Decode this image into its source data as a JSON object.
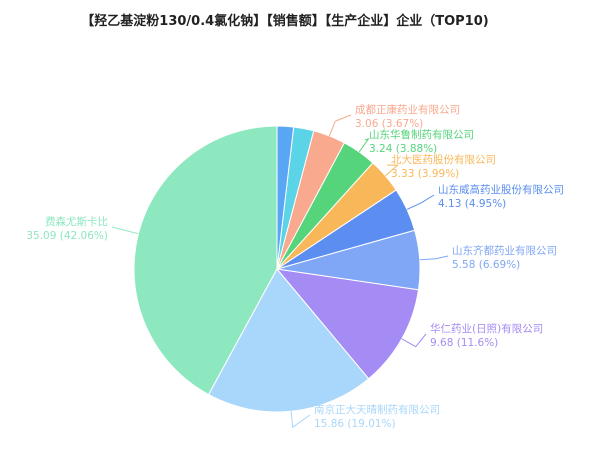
{
  "chart_data": {
    "type": "pie",
    "title": "【羟乙基淀粉130/0.4氯化钠】【销售额】【生产企业】企业（TOP10)",
    "slices": [
      {
        "label": "费森尤斯卡比",
        "value": 35.09,
        "percent": "42.06%",
        "color": "#8ee8bf"
      },
      {
        "label": "南京正大天晴制药有限公司",
        "value": 15.86,
        "percent": "19.01%",
        "color": "#a9d7fb"
      },
      {
        "label": "华仁药业(日照)有限公司",
        "value": 9.68,
        "percent": "11.6%",
        "color": "#a58cf5"
      },
      {
        "label": "山东齐都药业有限公司",
        "value": 5.58,
        "percent": "6.69%",
        "color": "#80a7f5"
      },
      {
        "label": "山东威高药业股份有限公司",
        "value": 4.13,
        "percent": "4.95%",
        "color": "#5b8ef0"
      },
      {
        "label": "北大医药股份有限公司",
        "value": 3.33,
        "percent": "3.99%",
        "color": "#f8b85a"
      },
      {
        "label": "山东华鲁制药有限公司",
        "value": 3.24,
        "percent": "3.88%",
        "color": "#56d47c"
      },
      {
        "label": "成都正康药业有限公司",
        "value": 3.06,
        "percent": "3.67%",
        "color": "#f9a98e"
      },
      {
        "label": "",
        "value": 1.9,
        "percent": "",
        "color": "#5ad4e6"
      },
      {
        "label": "",
        "value": 1.55,
        "percent": "",
        "color": "#59a6f5"
      }
    ]
  }
}
